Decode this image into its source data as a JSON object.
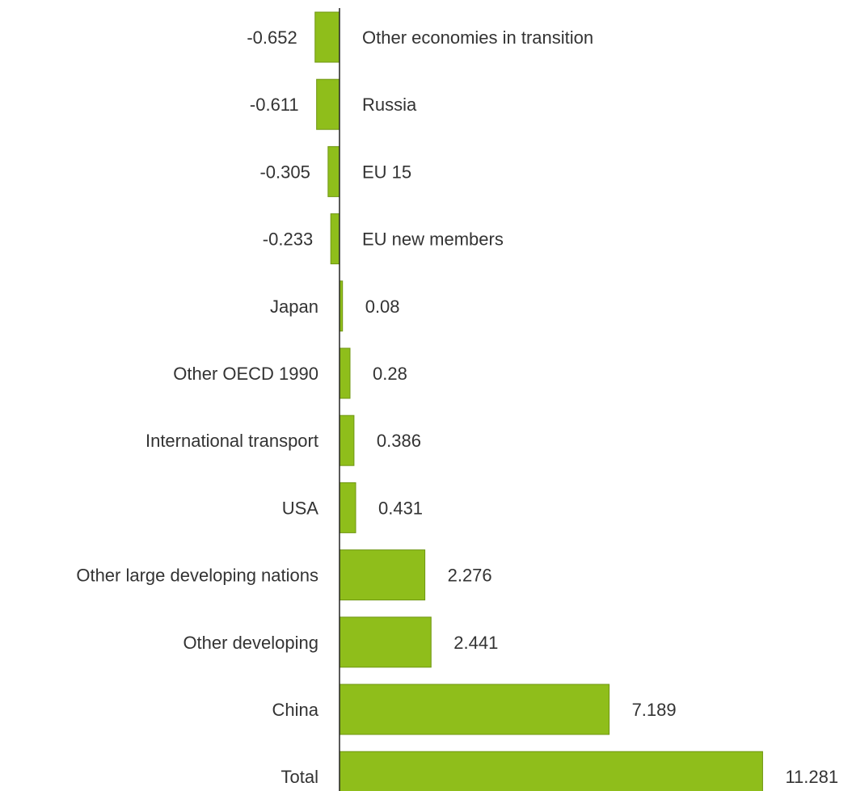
{
  "chart_data": {
    "type": "bar",
    "orientation": "horizontal",
    "categories": [
      "Other economies in transition",
      "Russia",
      "EU 15",
      "EU new members",
      "Japan",
      "Other OECD 1990",
      "International transport",
      "USA",
      "Other large developing nations",
      "Other developing",
      "China",
      "Total"
    ],
    "values": [
      -0.652,
      -0.611,
      -0.305,
      -0.233,
      0.08,
      0.28,
      0.386,
      0.431,
      2.276,
      2.441,
      7.189,
      11.281
    ],
    "value_labels": [
      "-0.652",
      "-0.611",
      "-0.305",
      "-0.233",
      "0.08",
      "0.28",
      "0.386",
      "0.431",
      "2.276",
      "2.441",
      "7.189",
      "11.281"
    ],
    "title": "",
    "xlabel": "",
    "ylabel": "",
    "xlim": [
      -0.652,
      11.281
    ],
    "grid": false,
    "legend": "none",
    "bar_color": "#8fbe1b",
    "bar_edge_color": "#6f9612",
    "axis_color": "#222222"
  }
}
